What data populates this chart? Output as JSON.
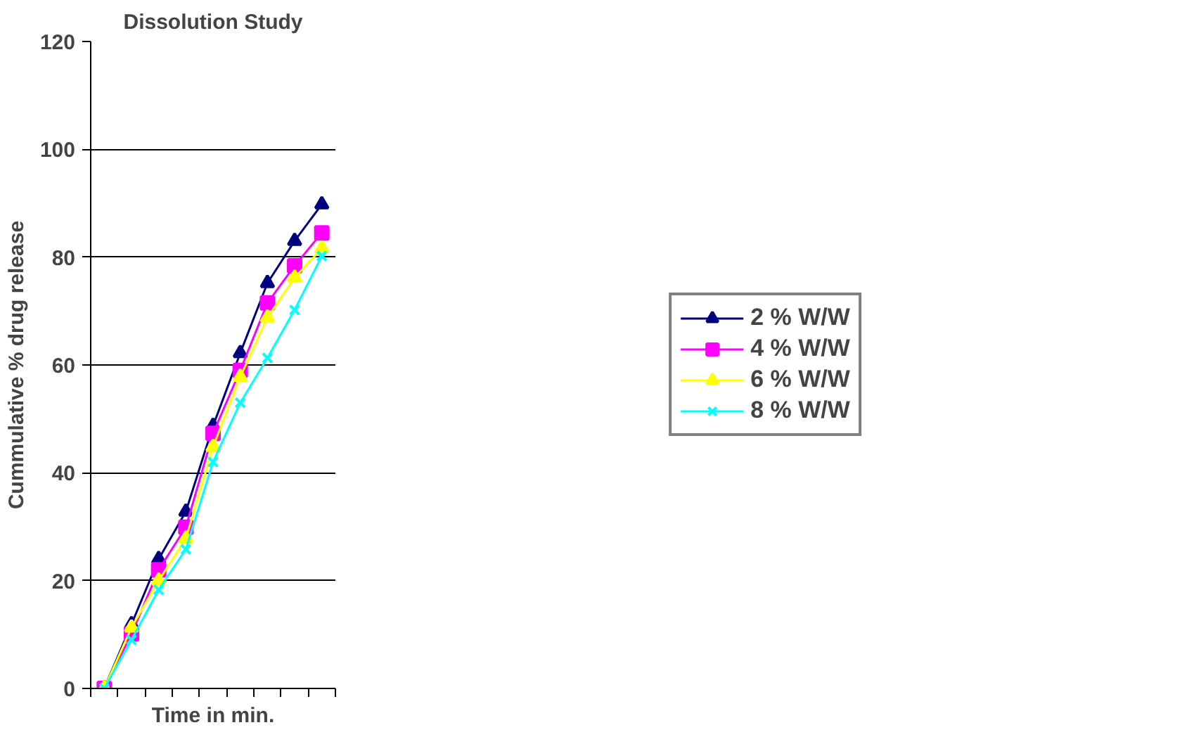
{
  "chart_data": {
    "type": "line",
    "title": "Dissolution Study",
    "xlabel": "Time in min.",
    "ylabel": "Cummulative % drug release",
    "categories": [
      null,
      null,
      null,
      null,
      null,
      null,
      null,
      null,
      null
    ],
    "ylim": [
      0,
      120
    ],
    "yticks": [
      0,
      20,
      40,
      60,
      80,
      100,
      120
    ],
    "grid": "y",
    "legend": "right",
    "line_style": "solid",
    "series": [
      {
        "name": "2 % W/W",
        "color": "#000080",
        "marker": "triangle",
        "values": [
          0,
          11.9,
          24,
          32.8,
          48.7,
          62.2,
          75.2,
          83,
          89.8
        ]
      },
      {
        "name": "4 % W/W",
        "color": "#ff00ff",
        "marker": "square",
        "values": [
          0,
          10.1,
          22,
          29.9,
          47.3,
          59,
          71.5,
          78.4,
          84.5
        ]
      },
      {
        "name": "6 % W/W",
        "color": "#ffff00",
        "marker": "triangle",
        "values": [
          0,
          11.3,
          20,
          27.8,
          44.8,
          57.8,
          68.8,
          76.2,
          81.6
        ]
      },
      {
        "name": "8 % W/W",
        "color": "#00ffff",
        "marker": "cross",
        "values": [
          0,
          9,
          18.3,
          25.8,
          42,
          53,
          61.3,
          70.2,
          80.2
        ]
      }
    ]
  }
}
